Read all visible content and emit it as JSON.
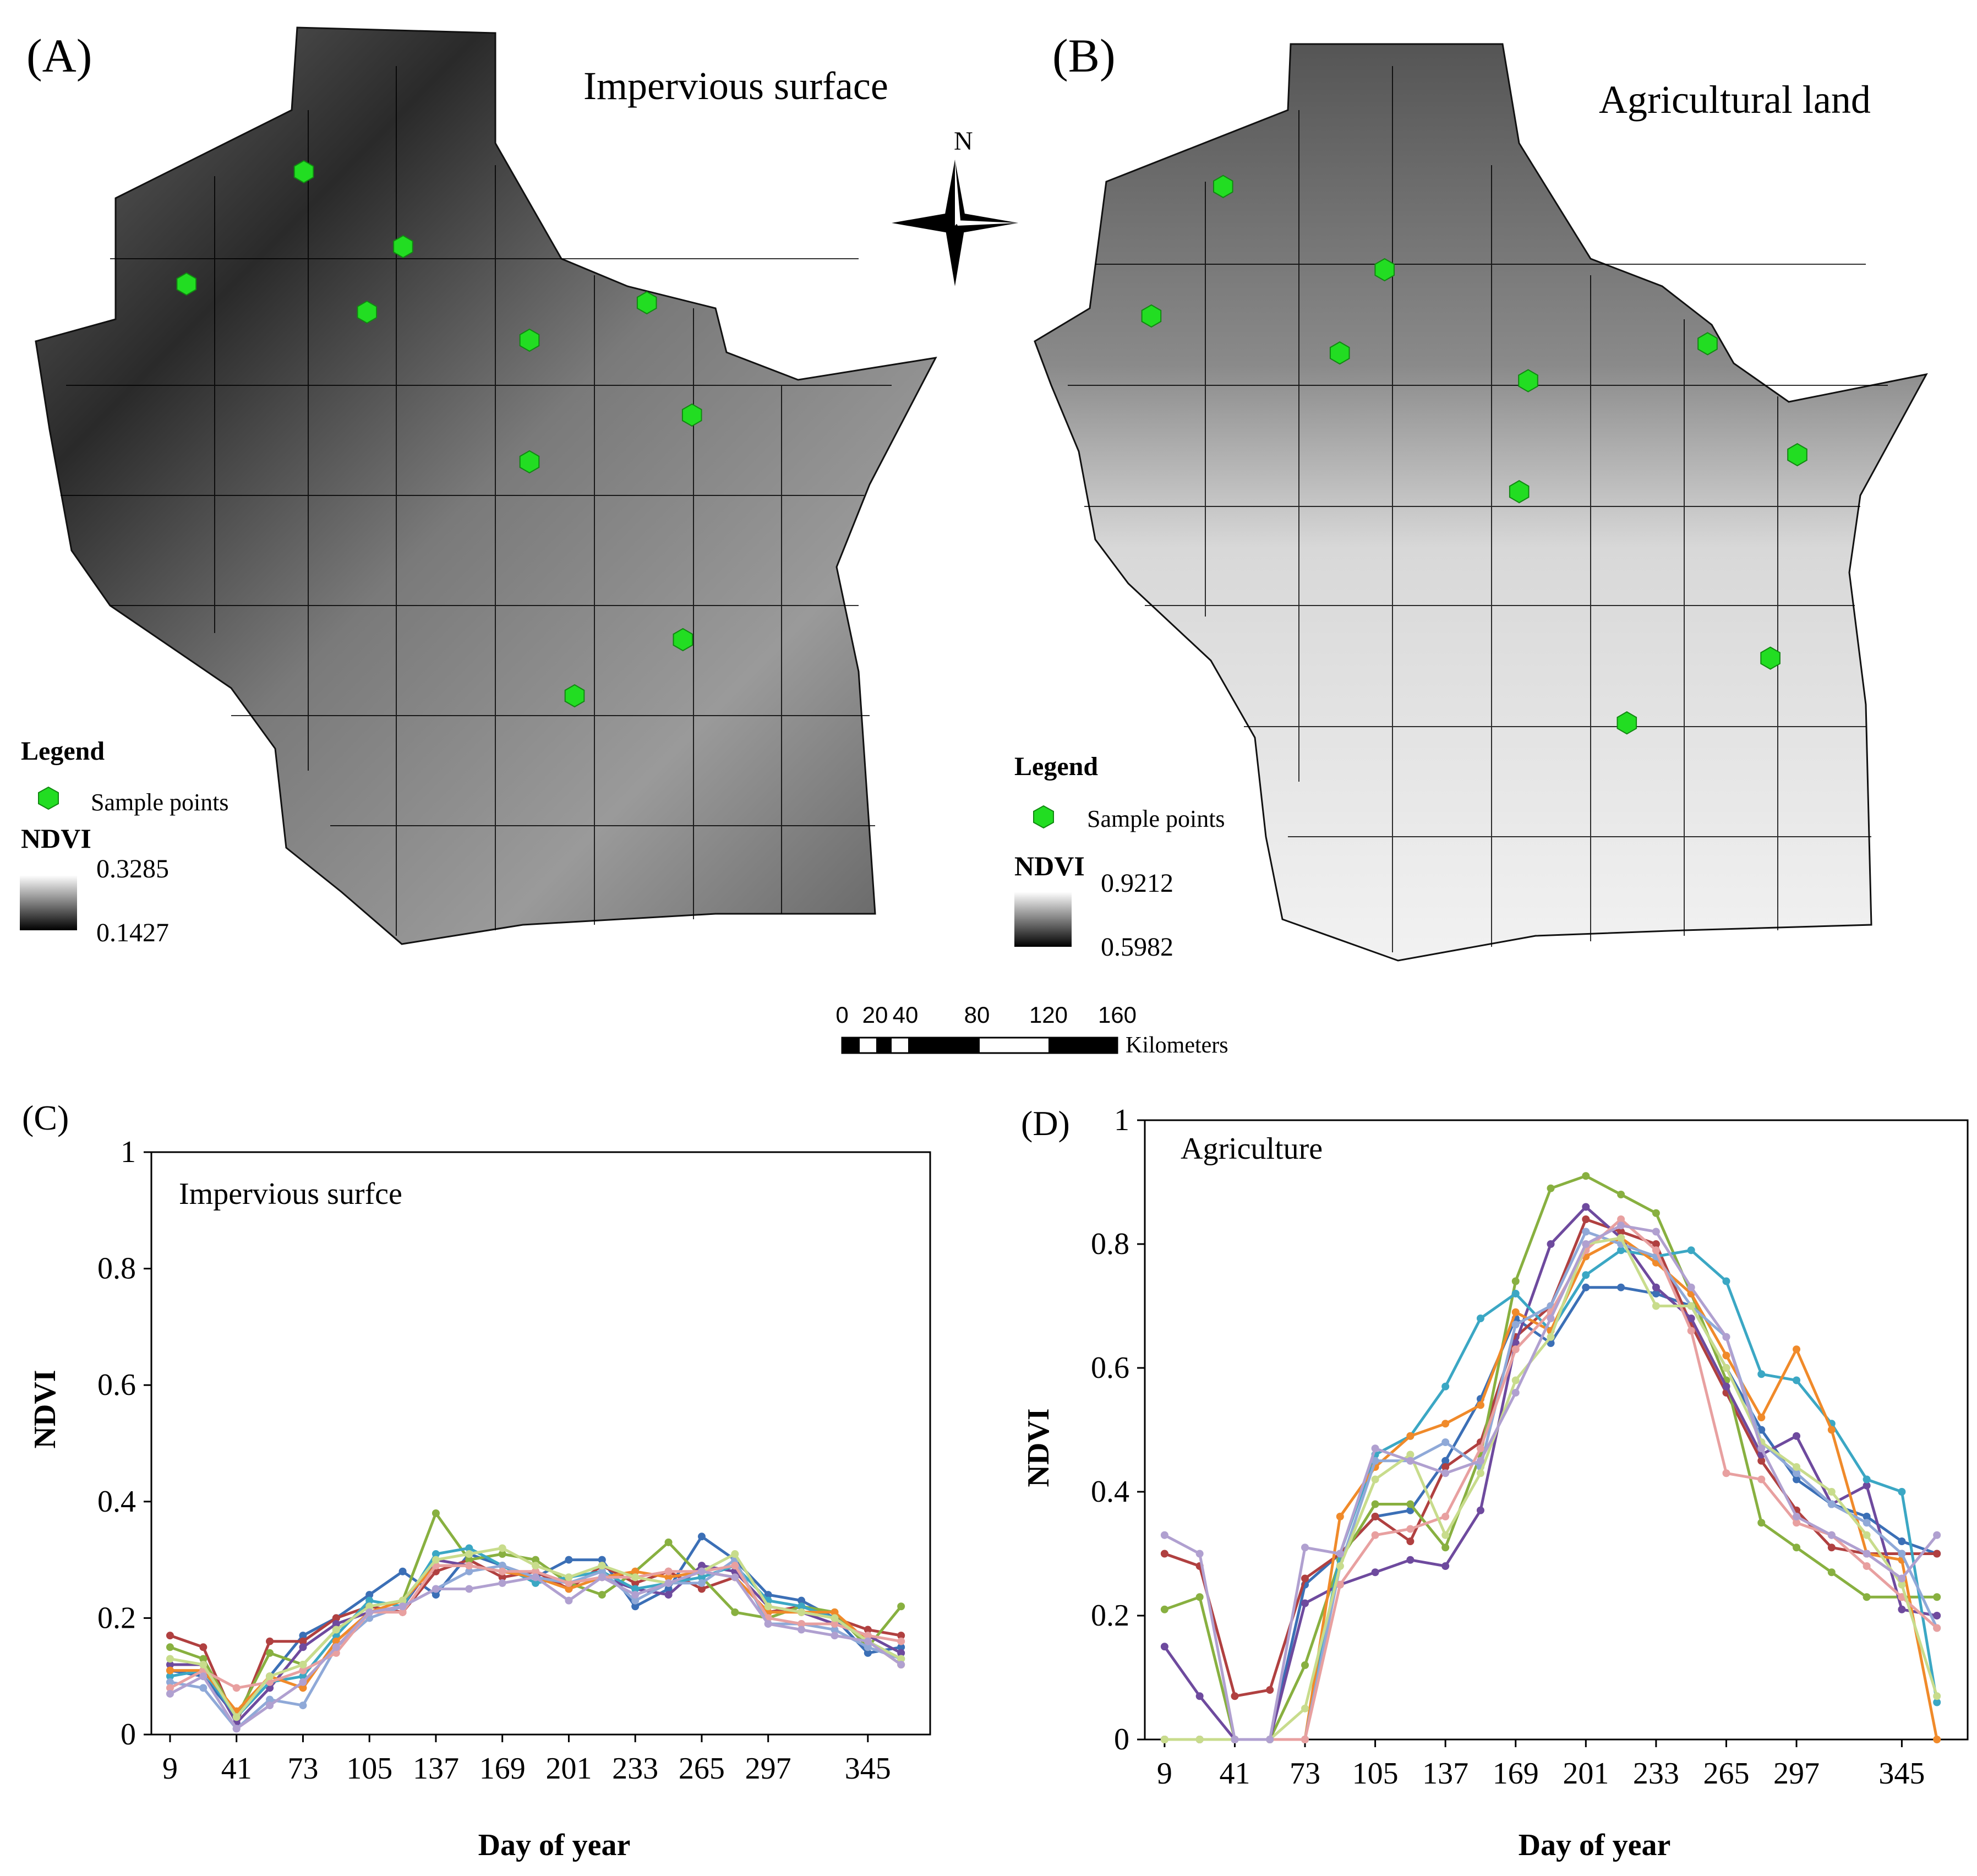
{
  "panel_a": {
    "label": "(A)",
    "title": "Impervious surface",
    "legend_title": "Legend",
    "legend_item": "Sample points",
    "ramp_label": "NDVI",
    "ramp_high": "0.3285",
    "ramp_low": "0.1427",
    "sample_points": [
      [
        0.3,
        0.16
      ],
      [
        0.41,
        0.24
      ],
      [
        0.17,
        0.28
      ],
      [
        0.37,
        0.31
      ],
      [
        0.55,
        0.34
      ],
      [
        0.68,
        0.3
      ],
      [
        0.73,
        0.42
      ],
      [
        0.55,
        0.47
      ],
      [
        0.72,
        0.66
      ],
      [
        0.6,
        0.72
      ]
    ]
  },
  "panel_b": {
    "label": "(B)",
    "title": "Agricultural land",
    "legend_title": "Legend",
    "legend_item": "Sample points",
    "ramp_label": "NDVI",
    "ramp_high": "0.9212",
    "ramp_low": "0.5982",
    "sample_points": [
      [
        0.21,
        0.16
      ],
      [
        0.39,
        0.25
      ],
      [
        0.13,
        0.3
      ],
      [
        0.34,
        0.34
      ],
      [
        0.55,
        0.37
      ],
      [
        0.75,
        0.33
      ],
      [
        0.85,
        0.45
      ],
      [
        0.54,
        0.49
      ],
      [
        0.82,
        0.67
      ],
      [
        0.66,
        0.74
      ]
    ]
  },
  "north_label": "N",
  "scalebar": {
    "ticks": [
      "0",
      "20",
      "40",
      "80",
      "120",
      "160"
    ],
    "unit": "Kilometers"
  },
  "colors": {
    "sample_point": "#22dd22",
    "series": [
      "#3b6fb6",
      "#b04040",
      "#88b040",
      "#6e4a9e",
      "#3ba7c4",
      "#f08a2a",
      "#8fa9d8",
      "#e8a0a0",
      "#c8dc8c",
      "#b0a0d0"
    ]
  },
  "chart_data": [
    {
      "type": "line",
      "panel_label": "(C)",
      "title": "Impervious surfce",
      "xlabel": "Day of year",
      "ylabel": "NDVI",
      "xlim": [
        0,
        375
      ],
      "ylim": [
        0,
        1
      ],
      "yticks": [
        "0",
        "0.2",
        "0.4",
        "0.6",
        "0.8",
        "1"
      ],
      "xticks": [
        9,
        41,
        73,
        105,
        137,
        169,
        201,
        233,
        265,
        297,
        345
      ],
      "x": [
        9,
        25,
        41,
        57,
        73,
        89,
        105,
        121,
        137,
        153,
        169,
        185,
        201,
        217,
        233,
        249,
        265,
        281,
        297,
        313,
        329,
        345,
        361
      ],
      "series": [
        {
          "values": [
            0.11,
            0.1,
            0.03,
            0.1,
            0.17,
            0.2,
            0.24,
            0.28,
            0.24,
            0.31,
            0.29,
            0.27,
            0.3,
            0.3,
            0.22,
            0.25,
            0.34,
            0.3,
            0.24,
            0.23,
            0.2,
            0.14,
            0.15
          ]
        },
        {
          "values": [
            0.17,
            0.15,
            0.02,
            0.16,
            0.16,
            0.2,
            0.22,
            0.21,
            0.28,
            0.3,
            0.27,
            0.28,
            0.25,
            0.29,
            0.26,
            0.28,
            0.25,
            0.27,
            0.21,
            0.22,
            0.2,
            0.18,
            0.17
          ]
        },
        {
          "values": [
            0.15,
            0.13,
            0.03,
            0.14,
            0.12,
            0.18,
            0.22,
            0.23,
            0.38,
            0.3,
            0.31,
            0.3,
            0.26,
            0.24,
            0.28,
            0.33,
            0.27,
            0.21,
            0.2,
            0.22,
            0.21,
            0.15,
            0.22
          ]
        },
        {
          "values": [
            0.12,
            0.12,
            0.02,
            0.08,
            0.15,
            0.19,
            0.21,
            0.22,
            0.3,
            0.29,
            0.28,
            0.27,
            0.26,
            0.27,
            0.25,
            0.24,
            0.29,
            0.28,
            0.22,
            0.21,
            0.19,
            0.17,
            0.14
          ]
        },
        {
          "values": [
            0.1,
            0.11,
            0.03,
            0.09,
            0.1,
            0.17,
            0.23,
            0.22,
            0.31,
            0.32,
            0.29,
            0.26,
            0.27,
            0.28,
            0.25,
            0.26,
            0.27,
            0.29,
            0.23,
            0.22,
            0.2,
            0.16,
            0.13
          ]
        },
        {
          "values": [
            0.11,
            0.11,
            0.04,
            0.1,
            0.08,
            0.16,
            0.21,
            0.23,
            0.29,
            0.29,
            0.28,
            0.27,
            0.25,
            0.27,
            0.28,
            0.27,
            0.28,
            0.27,
            0.21,
            0.21,
            0.21,
            0.16,
            0.12
          ]
        },
        {
          "values": [
            0.09,
            0.08,
            0.01,
            0.06,
            0.05,
            0.15,
            0.2,
            0.22,
            0.25,
            0.28,
            0.29,
            0.27,
            0.26,
            0.28,
            0.23,
            0.26,
            0.26,
            0.3,
            0.19,
            0.19,
            0.18,
            0.15,
            0.13
          ]
        },
        {
          "values": [
            0.08,
            0.11,
            0.08,
            0.09,
            0.11,
            0.14,
            0.21,
            0.21,
            0.29,
            0.29,
            0.28,
            0.28,
            0.26,
            0.27,
            0.27,
            0.28,
            0.28,
            0.29,
            0.2,
            0.19,
            0.19,
            0.17,
            0.16
          ]
        },
        {
          "values": [
            0.13,
            0.12,
            0.03,
            0.1,
            0.12,
            0.18,
            0.22,
            0.23,
            0.3,
            0.31,
            0.32,
            0.29,
            0.27,
            0.29,
            0.27,
            0.26,
            0.28,
            0.31,
            0.22,
            0.21,
            0.2,
            0.16,
            0.13
          ]
        },
        {
          "values": [
            0.07,
            0.1,
            0.01,
            0.05,
            0.09,
            0.15,
            0.21,
            0.22,
            0.25,
            0.25,
            0.26,
            0.27,
            0.23,
            0.27,
            0.24,
            0.26,
            0.28,
            0.27,
            0.19,
            0.18,
            0.17,
            0.16,
            0.12
          ]
        }
      ]
    },
    {
      "type": "line",
      "panel_label": "(D)",
      "title": "Agriculture",
      "xlabel": "Day of year",
      "ylabel": "NDVI",
      "xlim": [
        0,
        375
      ],
      "ylim": [
        0,
        1
      ],
      "yticks": [
        "0",
        "0.2",
        "0.4",
        "0.6",
        "0.8",
        "1"
      ],
      "xticks": [
        9,
        41,
        73,
        105,
        137,
        169,
        201,
        233,
        265,
        297,
        345
      ],
      "x": [
        9,
        25,
        41,
        57,
        73,
        89,
        105,
        121,
        137,
        153,
        169,
        185,
        201,
        217,
        233,
        249,
        265,
        281,
        297,
        313,
        329,
        345,
        361
      ],
      "series": [
        {
          "values": [
            0.0,
            0.0,
            0.0,
            0.0,
            0.25,
            0.3,
            0.36,
            0.37,
            0.45,
            0.55,
            0.68,
            0.64,
            0.73,
            0.73,
            0.72,
            0.7,
            0.6,
            0.5,
            0.42,
            0.38,
            0.36,
            0.32,
            0.3
          ]
        },
        {
          "values": [
            0.3,
            0.28,
            0.07,
            0.08,
            0.26,
            0.3,
            0.36,
            0.32,
            0.44,
            0.48,
            0.65,
            0.7,
            0.84,
            0.82,
            0.8,
            0.67,
            0.56,
            0.45,
            0.37,
            0.31,
            0.3,
            0.3,
            0.3
          ]
        },
        {
          "values": [
            0.21,
            0.23,
            0.0,
            0.0,
            0.12,
            0.29,
            0.38,
            0.38,
            0.31,
            0.46,
            0.74,
            0.89,
            0.91,
            0.88,
            0.85,
            0.72,
            0.58,
            0.35,
            0.31,
            0.27,
            0.23,
            0.23,
            0.23
          ]
        },
        {
          "values": [
            0.15,
            0.07,
            0.0,
            0.0,
            0.22,
            0.25,
            0.27,
            0.29,
            0.28,
            0.37,
            0.64,
            0.8,
            0.86,
            0.81,
            0.73,
            0.68,
            0.57,
            0.46,
            0.49,
            0.38,
            0.41,
            0.21,
            0.2
          ]
        },
        {
          "values": [
            0.0,
            0.0,
            0.0,
            0.0,
            0.0,
            0.3,
            0.46,
            0.49,
            0.57,
            0.68,
            0.72,
            0.66,
            0.75,
            0.79,
            0.78,
            0.79,
            0.74,
            0.59,
            0.58,
            0.51,
            0.42,
            0.4,
            0.06
          ]
        },
        {
          "values": [
            0.0,
            0.0,
            0.0,
            0.0,
            0.0,
            0.36,
            0.44,
            0.49,
            0.51,
            0.54,
            0.69,
            0.66,
            0.78,
            0.81,
            0.77,
            0.72,
            0.62,
            0.52,
            0.63,
            0.5,
            0.3,
            0.29,
            0.0
          ]
        },
        {
          "values": [
            0.0,
            0.0,
            0.0,
            0.0,
            0.0,
            0.28,
            0.45,
            0.45,
            0.48,
            0.44,
            0.67,
            0.7,
            0.82,
            0.8,
            0.78,
            0.7,
            0.65,
            0.48,
            0.43,
            0.38,
            0.35,
            0.3,
            0.18
          ]
        },
        {
          "values": [
            0.0,
            0.0,
            0.0,
            0.0,
            0.0,
            0.25,
            0.33,
            0.34,
            0.36,
            0.47,
            0.63,
            0.69,
            0.79,
            0.84,
            0.79,
            0.66,
            0.43,
            0.42,
            0.35,
            0.33,
            0.28,
            0.23,
            0.18
          ]
        },
        {
          "values": [
            0.0,
            0.0,
            0.0,
            0.0,
            0.05,
            0.28,
            0.42,
            0.46,
            0.33,
            0.43,
            0.58,
            0.65,
            0.8,
            0.81,
            0.7,
            0.7,
            0.6,
            0.48,
            0.44,
            0.4,
            0.33,
            0.25,
            0.07
          ]
        },
        {
          "values": [
            0.33,
            0.3,
            0.0,
            0.0,
            0.31,
            0.3,
            0.47,
            0.45,
            0.43,
            0.45,
            0.56,
            0.68,
            0.8,
            0.83,
            0.82,
            0.73,
            0.65,
            0.47,
            0.36,
            0.33,
            0.3,
            0.26,
            0.33
          ]
        }
      ]
    }
  ]
}
